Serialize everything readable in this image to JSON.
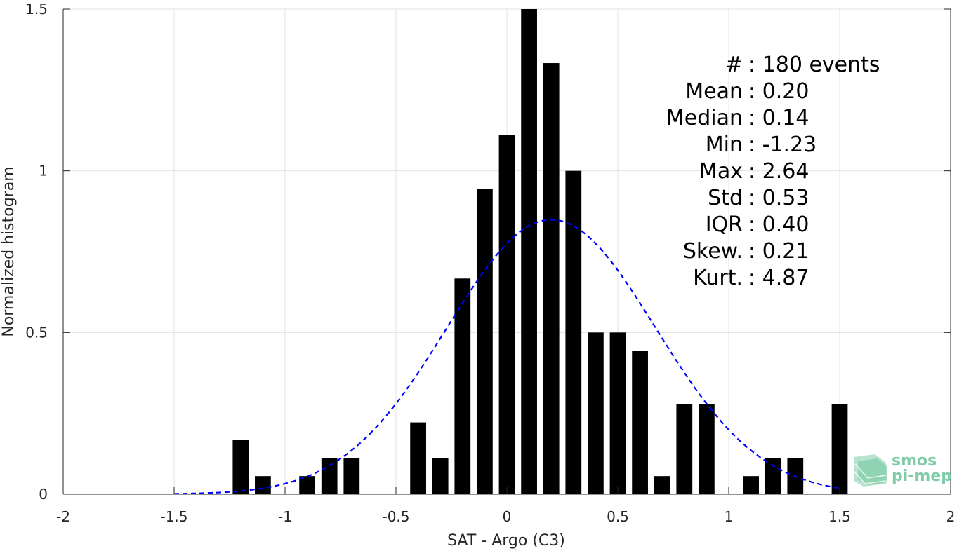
{
  "chart_data": {
    "type": "bar",
    "xlabel": "SAT - Argo (C3)",
    "ylabel": "Normalized histogram",
    "xlim": [
      -2,
      2
    ],
    "ylim": [
      0,
      1.5
    ],
    "xticks": [
      -2,
      -1.5,
      -1,
      -0.5,
      0,
      0.5,
      1,
      1.5,
      2
    ],
    "xtick_labels": [
      "-2",
      "-1.5",
      "-1",
      "-0.5",
      "0",
      "0.5",
      "1",
      "1.5",
      "2"
    ],
    "yticks": [
      0,
      0.5,
      1,
      1.5
    ],
    "ytick_labels": [
      "0",
      "0.5",
      "1",
      "1.5"
    ],
    "grid": true,
    "bin_width": 0.1,
    "bars": [
      {
        "x": -1.2,
        "y": 0.167
      },
      {
        "x": -1.1,
        "y": 0.056
      },
      {
        "x": -0.9,
        "y": 0.056
      },
      {
        "x": -0.8,
        "y": 0.111
      },
      {
        "x": -0.7,
        "y": 0.111
      },
      {
        "x": -0.4,
        "y": 0.222
      },
      {
        "x": -0.3,
        "y": 0.111
      },
      {
        "x": -0.2,
        "y": 0.667
      },
      {
        "x": -0.1,
        "y": 0.944
      },
      {
        "x": 0.0,
        "y": 1.111
      },
      {
        "x": 0.1,
        "y": 1.5
      },
      {
        "x": 0.2,
        "y": 1.333
      },
      {
        "x": 0.3,
        "y": 1.0
      },
      {
        "x": 0.4,
        "y": 0.5
      },
      {
        "x": 0.5,
        "y": 0.5
      },
      {
        "x": 0.6,
        "y": 0.444
      },
      {
        "x": 0.7,
        "y": 0.056
      },
      {
        "x": 0.8,
        "y": 0.278
      },
      {
        "x": 0.9,
        "y": 0.278
      },
      {
        "x": 1.1,
        "y": 0.056
      },
      {
        "x": 1.2,
        "y": 0.111
      },
      {
        "x": 1.3,
        "y": 0.111
      },
      {
        "x": 1.5,
        "y": 0.278
      }
    ],
    "fit_curve": {
      "type": "gaussian",
      "mean": 0.2,
      "std": 0.47,
      "x_range": [
        -1.5,
        1.5
      ],
      "color": "#0000ff",
      "style": "dashed"
    },
    "bar_color": "#000000",
    "stats": [
      {
        "label": "#  ",
        "value": ": 180 events"
      },
      {
        "label": "Mean",
        "value": ": 0.20"
      },
      {
        "label": "Median",
        "value": ": 0.14"
      },
      {
        "label": "Min",
        "value": ": -1.23"
      },
      {
        "label": "Max",
        "value": ": 2.64"
      },
      {
        "label": "Std",
        "value": ": 0.53"
      },
      {
        "label": "IQR",
        "value": ": 0.40"
      },
      {
        "label": "Skew.",
        "value": ": 0.21"
      },
      {
        "label": "Kurt.",
        "value": ": 4.87"
      }
    ]
  },
  "logo": {
    "line1": "smos",
    "line2": "pi-mep",
    "color": "#7fcca6"
  }
}
